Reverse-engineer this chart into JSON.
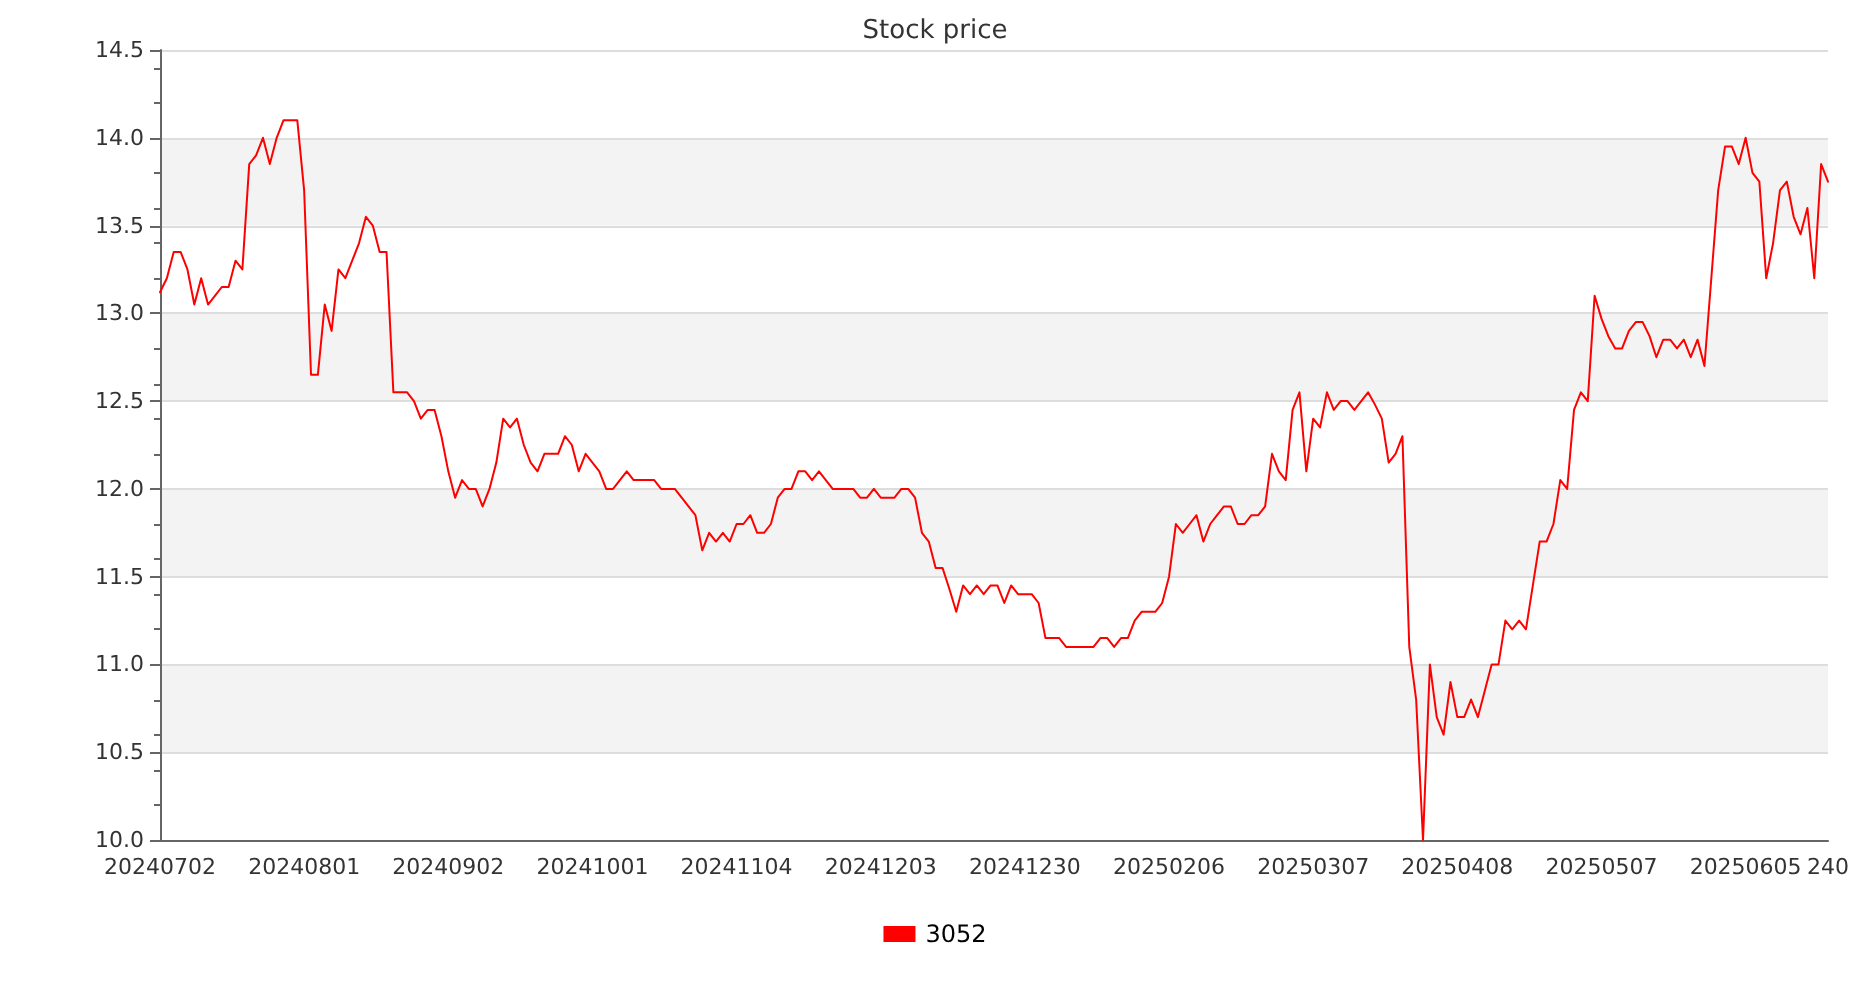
{
  "chart_data": {
    "type": "line",
    "title": "Stock price",
    "categories": [
      "20240702",
      null,
      null,
      null,
      null,
      null,
      null,
      null,
      null,
      null,
      null,
      null,
      null,
      null,
      null,
      null,
      null,
      null,
      null,
      null,
      null,
      "20240801",
      null,
      null,
      null,
      null,
      null,
      null,
      null,
      null,
      null,
      null,
      null,
      null,
      null,
      null,
      null,
      null,
      null,
      null,
      null,
      null,
      "20240902",
      null,
      null,
      null,
      null,
      null,
      null,
      null,
      null,
      null,
      null,
      null,
      null,
      null,
      null,
      null,
      null,
      null,
      null,
      null,
      null,
      "20241001",
      null,
      null,
      null,
      null,
      null,
      null,
      null,
      null,
      null,
      null,
      null,
      null,
      null,
      null,
      null,
      null,
      null,
      null,
      null,
      null,
      "20241104",
      null,
      null,
      null,
      null,
      null,
      null,
      null,
      null,
      null,
      null,
      null,
      null,
      null,
      null,
      null,
      null,
      null,
      null,
      null,
      null,
      "20241203",
      null,
      null,
      null,
      null,
      null,
      null,
      null,
      null,
      null,
      null,
      null,
      null,
      null,
      null,
      null,
      null,
      null,
      null,
      null,
      null,
      "20241230",
      null,
      null,
      null,
      null,
      null,
      null,
      null,
      null,
      null,
      null,
      null,
      null,
      null,
      null,
      null,
      null,
      null,
      null,
      null,
      null,
      "20250206",
      null,
      null,
      null,
      null,
      null,
      null,
      null,
      null,
      null,
      null,
      null,
      null,
      null,
      null,
      null,
      null,
      null,
      null,
      null,
      null,
      "20250307",
      null,
      null,
      null,
      null,
      null,
      null,
      null,
      null,
      null,
      null,
      null,
      null,
      null,
      null,
      null,
      null,
      null,
      null,
      null,
      null,
      "20250408",
      null,
      null,
      null,
      null,
      null,
      null,
      null,
      null,
      null,
      null,
      null,
      null,
      null,
      null,
      null,
      null,
      null,
      null,
      null,
      null,
      "20250507",
      null,
      null,
      null,
      null,
      null,
      null,
      null,
      null,
      null,
      null,
      null,
      null,
      null,
      null,
      null,
      null,
      null,
      null,
      null,
      null,
      "20250605",
      null,
      null,
      null,
      null,
      null,
      null,
      null,
      null,
      null,
      null,
      null,
      "240"
    ],
    "series": [
      {
        "name": "3052",
        "color": "#ff0000",
        "values": [
          13.12,
          13.2,
          13.35,
          13.35,
          13.25,
          13.05,
          13.2,
          13.05,
          13.1,
          13.15,
          13.15,
          13.3,
          13.25,
          13.85,
          13.9,
          14.0,
          13.85,
          14.0,
          14.1,
          14.1,
          14.1,
          13.7,
          12.65,
          12.65,
          13.05,
          12.9,
          13.25,
          13.2,
          13.3,
          13.4,
          13.55,
          13.5,
          13.35,
          13.35,
          12.55,
          12.55,
          12.55,
          12.5,
          12.4,
          12.45,
          12.45,
          12.3,
          12.1,
          11.95,
          12.05,
          12.0,
          12.0,
          11.9,
          12.0,
          12.15,
          12.4,
          12.35,
          12.4,
          12.25,
          12.15,
          12.1,
          12.2,
          12.2,
          12.2,
          12.3,
          12.25,
          12.1,
          12.2,
          12.15,
          12.1,
          12.0,
          12.0,
          12.05,
          12.1,
          12.05,
          12.05,
          12.05,
          12.05,
          12.0,
          12.0,
          12.0,
          11.95,
          11.9,
          11.85,
          11.65,
          11.75,
          11.7,
          11.75,
          11.7,
          11.8,
          11.8,
          11.85,
          11.75,
          11.75,
          11.8,
          11.95,
          12.0,
          12.0,
          12.1,
          12.1,
          12.05,
          12.1,
          12.05,
          12.0,
          12.0,
          12.0,
          12.0,
          11.95,
          11.95,
          12.0,
          11.95,
          11.95,
          11.95,
          12.0,
          12.0,
          11.95,
          11.75,
          11.7,
          11.55,
          11.55,
          11.43,
          11.3,
          11.45,
          11.4,
          11.45,
          11.4,
          11.45,
          11.45,
          11.35,
          11.45,
          11.4,
          11.4,
          11.4,
          11.35,
          11.15,
          11.15,
          11.15,
          11.1,
          11.1,
          11.1,
          11.1,
          11.1,
          11.15,
          11.15,
          11.1,
          11.15,
          11.15,
          11.25,
          11.3,
          11.3,
          11.3,
          11.35,
          11.5,
          11.8,
          11.75,
          11.8,
          11.85,
          11.7,
          11.8,
          11.85,
          11.9,
          11.9,
          11.8,
          11.8,
          11.85,
          11.85,
          11.9,
          12.2,
          12.1,
          12.05,
          12.45,
          12.55,
          12.1,
          12.4,
          12.35,
          12.55,
          12.45,
          12.5,
          12.5,
          12.45,
          12.5,
          12.55,
          12.48,
          12.4,
          12.15,
          12.2,
          12.3,
          11.1,
          10.8,
          10.0,
          11.0,
          10.7,
          10.6,
          10.9,
          10.7,
          10.7,
          10.8,
          10.7,
          10.85,
          11.0,
          11.0,
          11.25,
          11.2,
          11.25,
          11.2,
          11.45,
          11.7,
          11.7,
          11.8,
          12.05,
          12.0,
          12.45,
          12.55,
          12.5,
          13.1,
          12.97,
          12.87,
          12.8,
          12.8,
          12.9,
          12.95,
          12.95,
          12.87,
          12.75,
          12.85,
          12.85,
          12.8,
          12.85,
          12.75,
          12.85,
          12.7,
          13.2,
          13.7,
          13.95,
          13.95,
          13.85,
          14.0,
          13.8,
          13.75,
          13.2,
          13.4,
          13.7,
          13.75,
          13.55,
          13.45,
          13.6,
          13.2,
          13.85,
          13.75
        ]
      }
    ],
    "ylim": [
      10.0,
      14.5
    ],
    "yticks": [
      {
        "value": 10,
        "label": "10.0"
      },
      {
        "value": 10.5,
        "label": "10.5"
      },
      {
        "value": 11,
        "label": "11.0"
      },
      {
        "value": 11.5,
        "label": "11.5"
      },
      {
        "value": 12,
        "label": "12.0"
      },
      {
        "value": 12.5,
        "label": "12.5"
      },
      {
        "value": 13,
        "label": "13.0"
      },
      {
        "value": 13.5,
        "label": "13.5"
      },
      {
        "value": 14,
        "label": "14.0"
      },
      {
        "value": 14.5,
        "label": "14.5"
      }
    ],
    "grid": "y",
    "legend": "bottom",
    "marker": "none",
    "line_style": "solid"
  }
}
